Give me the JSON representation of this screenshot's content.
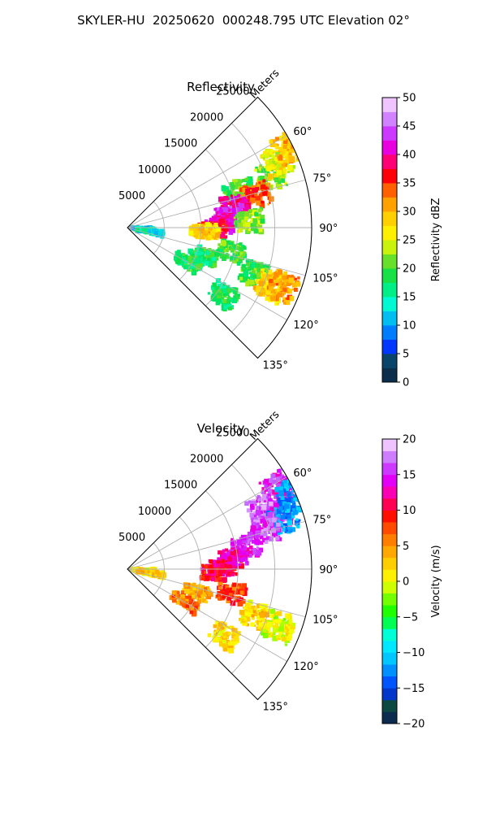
{
  "figure": {
    "title": "SKYLER-HU  20250620  000248.795 UTC Elevation 02°"
  },
  "chart_data": [
    {
      "type": "heatmap",
      "projection": "polar-sector",
      "title": "Reflectivity",
      "radial_label": "Meters",
      "radial_ticks": [
        "5000",
        "10000",
        "15000",
        "20000",
        "25000"
      ],
      "radial_values": [
        5000,
        10000,
        15000,
        20000,
        25000
      ],
      "range_max": 25000,
      "theta_range_deg": [
        45,
        135
      ],
      "theta_ticks": [
        "60°",
        "75°",
        "90°",
        "105°",
        "120°",
        "135°"
      ],
      "theta_values": [
        60,
        75,
        90,
        105,
        120,
        135
      ],
      "grid": true,
      "colorbar": {
        "label": "Reflectivity dBZ",
        "range": [
          0,
          50
        ],
        "ticks": [
          "0",
          "5",
          "10",
          "15",
          "20",
          "25",
          "30",
          "35",
          "40",
          "45",
          "50"
        ],
        "tick_values": [
          0,
          5,
          10,
          15,
          20,
          25,
          30,
          35,
          40,
          45,
          50
        ],
        "position": "right"
      },
      "echo_regions": [
        {
          "az": 72,
          "r": 16000,
          "value": 20
        },
        {
          "az": 70,
          "r": 20500,
          "value": 22
        },
        {
          "az": 66,
          "r": 22500,
          "value": 26
        },
        {
          "az": 64,
          "r": 24500,
          "value": 30
        },
        {
          "az": 76,
          "r": 18000,
          "value": 34
        },
        {
          "az": 78,
          "r": 15000,
          "value": 40
        },
        {
          "az": 83,
          "r": 14000,
          "value": 42
        },
        {
          "az": 88,
          "r": 12500,
          "value": 40
        },
        {
          "az": 91,
          "r": 11500,
          "value": 36
        },
        {
          "az": 93,
          "r": 10500,
          "value": 28
        },
        {
          "az": 87,
          "r": 16500,
          "value": 22
        },
        {
          "az": 103,
          "r": 14500,
          "value": 20
        },
        {
          "az": 110,
          "r": 11000,
          "value": 18
        },
        {
          "az": 120,
          "r": 9500,
          "value": 18
        },
        {
          "az": 110,
          "r": 18500,
          "value": 20
        },
        {
          "az": 112,
          "r": 21000,
          "value": 28
        },
        {
          "az": 111,
          "r": 22500,
          "value": 32
        },
        {
          "az": 125,
          "r": 16000,
          "value": 18
        },
        {
          "az": 95,
          "r": 1800,
          "value": 12
        },
        {
          "az": 100,
          "r": 3200,
          "value": 14
        }
      ]
    },
    {
      "type": "heatmap",
      "projection": "polar-sector",
      "title": "Velocity",
      "radial_label": "Meters",
      "radial_ticks": [
        "5000",
        "10000",
        "15000",
        "20000",
        "25000"
      ],
      "radial_values": [
        5000,
        10000,
        15000,
        20000,
        25000
      ],
      "range_max": 25000,
      "theta_range_deg": [
        45,
        135
      ],
      "theta_ticks": [
        "60°",
        "75°",
        "90°",
        "105°",
        "120°",
        "135°"
      ],
      "theta_values": [
        60,
        75,
        90,
        105,
        120,
        135
      ],
      "grid": true,
      "colorbar": {
        "label": "Velocity (m/s)",
        "range": [
          -20,
          20
        ],
        "ticks": [
          "−20",
          "−15",
          "−10",
          "−5",
          "0",
          "5",
          "10",
          "15",
          "20"
        ],
        "tick_values": [
          -20,
          -15,
          -10,
          -5,
          0,
          5,
          10,
          15,
          20
        ],
        "position": "right"
      },
      "echo_regions": [
        {
          "az": 66,
          "r": 20000,
          "value": 16
        },
        {
          "az": 62,
          "r": 23000,
          "value": 15
        },
        {
          "az": 70,
          "r": 21500,
          "value": 16
        },
        {
          "az": 66,
          "r": 24500,
          "value": -12
        },
        {
          "az": 72,
          "r": 22500,
          "value": -12
        },
        {
          "az": 74,
          "r": 19500,
          "value": 16
        },
        {
          "az": 79,
          "r": 16500,
          "value": 15
        },
        {
          "az": 84,
          "r": 14500,
          "value": 13
        },
        {
          "az": 88,
          "r": 13000,
          "value": 12
        },
        {
          "az": 92,
          "r": 12000,
          "value": 10
        },
        {
          "az": 103,
          "r": 14500,
          "value": 8
        },
        {
          "az": 108,
          "r": 10000,
          "value": 4
        },
        {
          "az": 119,
          "r": 9000,
          "value": 6
        },
        {
          "az": 110,
          "r": 18500,
          "value": 2
        },
        {
          "az": 111,
          "r": 22000,
          "value": 0
        },
        {
          "az": 124,
          "r": 16000,
          "value": 2
        },
        {
          "az": 95,
          "r": 1800,
          "value": 1
        },
        {
          "az": 100,
          "r": 3200,
          "value": 2
        }
      ]
    }
  ],
  "colors": {
    "grid": "#b0b0b0",
    "axes": "#000000"
  }
}
